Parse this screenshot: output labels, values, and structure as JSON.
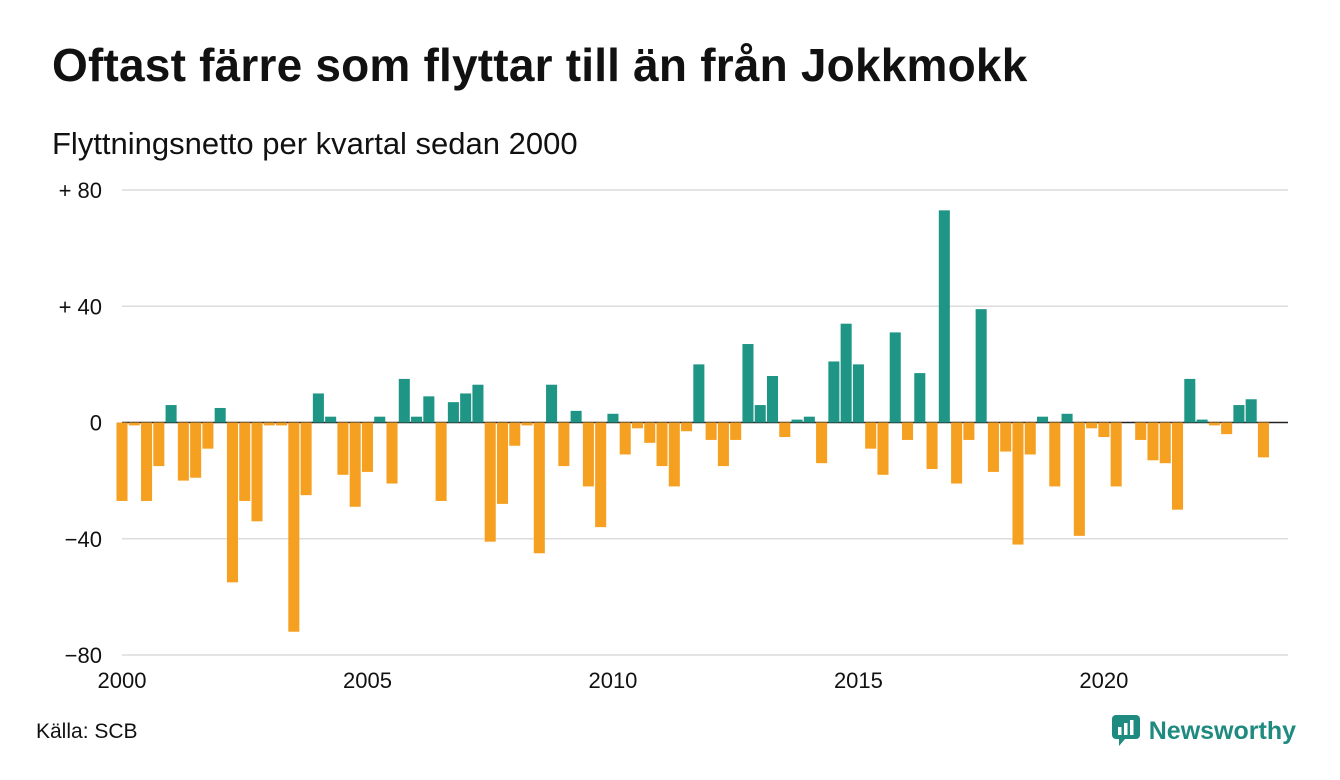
{
  "title": "Oftast färre som flyttar till än från Jokkmokk",
  "subtitle": "Flyttningsnetto per kvartal sedan 2000",
  "source": "Källa: SCB",
  "brand": "Newsworthy",
  "colors": {
    "positive": "#1e9585",
    "negative": "#f5a021",
    "grid": "#dcdcdc",
    "brand": "#1f8a7f"
  },
  "chart_data": {
    "type": "bar",
    "title": "Oftast färre som flyttar till än från Jokkmokk",
    "subtitle": "Flyttningsnetto per kvartal sedan 2000",
    "xlabel": "",
    "ylabel": "",
    "x_start": 2000,
    "x_period": "quarter",
    "xlim": [
      2000,
      2023.75
    ],
    "ylim": [
      -80,
      80
    ],
    "y_ticks": [
      80,
      40,
      0,
      -40,
      -80
    ],
    "y_tick_labels": [
      "+ 80",
      "+ 40",
      "0",
      "−40",
      "−80"
    ],
    "x_ticks": [
      2000,
      2005,
      2010,
      2015,
      2020
    ],
    "x_tick_labels": [
      "2000",
      "2005",
      "2010",
      "2015",
      "2020"
    ],
    "grid": true,
    "values": [
      -27,
      -1,
      -27,
      -15,
      6,
      -20,
      -19,
      -9,
      5,
      -55,
      -27,
      -34,
      -1,
      -1,
      -72,
      -25,
      10,
      2,
      -18,
      -29,
      -17,
      2,
      -21,
      15,
      2,
      9,
      -27,
      7,
      10,
      13,
      -41,
      -28,
      -8,
      -1,
      -45,
      13,
      -15,
      4,
      -22,
      -36,
      3,
      -11,
      -2,
      -7,
      -15,
      -22,
      -3,
      20,
      -6,
      -15,
      -6,
      27,
      6,
      16,
      -5,
      1,
      2,
      -14,
      21,
      34,
      20,
      -9,
      -18,
      31,
      -6,
      17,
      -16,
      73,
      -21,
      -6,
      39,
      -17,
      -10,
      -42,
      -11,
      2,
      -22,
      3,
      -39,
      -2,
      -5,
      -22,
      0,
      -6,
      -13,
      -14,
      -30,
      15,
      1,
      -1,
      -4,
      6,
      8,
      -12
    ]
  }
}
